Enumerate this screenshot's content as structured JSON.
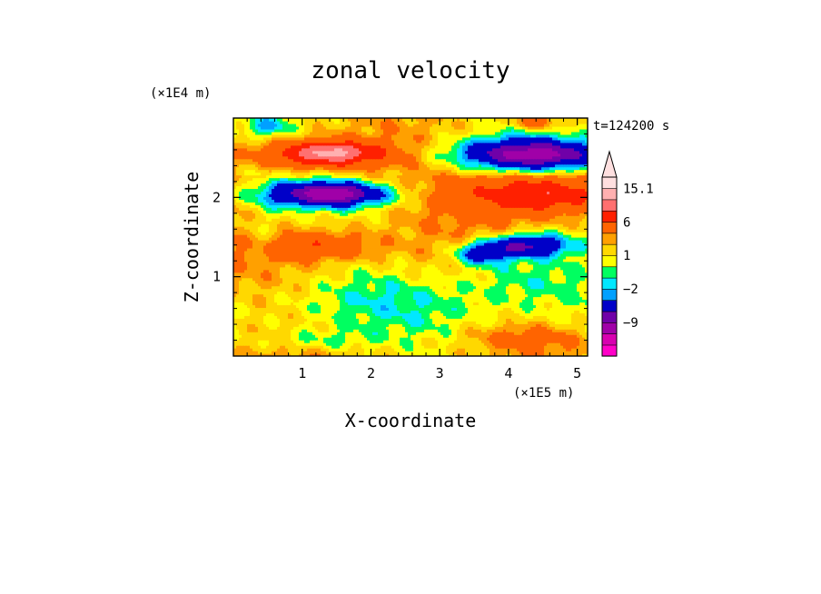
{
  "chart_data": {
    "type": "heatmap",
    "title": "zonal velocity",
    "xlabel": "X-coordinate",
    "ylabel": "Z-coordinate",
    "x_unit": "(×1E5 m)",
    "y_unit": "(×1E4 m)",
    "time_label": "t=124200 s",
    "xlim": [
      0,
      5.15
    ],
    "ylim": [
      0,
      3.0
    ],
    "x_ticks": [
      1,
      2,
      3,
      4,
      5
    ],
    "y_ticks": [
      1,
      2
    ],
    "grid": false,
    "legend_position": "right",
    "colorbar": {
      "levels": [
        -15,
        -12,
        -9,
        -6,
        -3,
        -2,
        -1,
        0,
        1,
        2,
        3,
        6,
        9,
        12,
        15.1
      ],
      "colors": [
        "#ff00c8",
        "#d800b0",
        "#a000a8",
        "#7000a8",
        "#0000c8",
        "#00a0ff",
        "#00e8ff",
        "#00ff60",
        "#ffff00",
        "#ffd800",
        "#ffa000",
        "#ff6400",
        "#ff2000",
        "#ff7070",
        "#ffb0b0",
        "#ffe0e0"
      ],
      "tick_labels": [
        {
          "value": 15.1,
          "label": "15.1"
        },
        {
          "value": 6,
          "label": "6"
        },
        {
          "value": 1,
          "label": "1"
        },
        {
          "value": -2,
          "label": "−2"
        },
        {
          "value": -9,
          "label": "−9"
        }
      ],
      "max_arrow": true
    },
    "features": [
      {
        "x": 1.3,
        "z": 2.55,
        "sx": 0.9,
        "sz": 0.18,
        "v": 9
      },
      {
        "x": 1.5,
        "z": 2.58,
        "sx": 0.4,
        "sz": 0.08,
        "v": 4
      },
      {
        "x": 1.35,
        "z": 2.05,
        "sx": 0.95,
        "sz": 0.17,
        "v": -10
      },
      {
        "x": 1.5,
        "z": 2.05,
        "sx": 0.35,
        "sz": 0.07,
        "v": -4
      },
      {
        "x": 4.3,
        "z": 2.55,
        "sx": 1.1,
        "sz": 0.2,
        "v": -10
      },
      {
        "x": 4.4,
        "z": 2.55,
        "sx": 0.4,
        "sz": 0.07,
        "v": -3
      },
      {
        "x": 4.5,
        "z": 2.05,
        "sx": 1.0,
        "sz": 0.25,
        "v": 7
      },
      {
        "x": 4.3,
        "z": 1.4,
        "sx": 0.6,
        "sz": 0.15,
        "v": -8
      },
      {
        "x": 3.6,
        "z": 1.3,
        "sx": 0.4,
        "sz": 0.15,
        "v": -6
      },
      {
        "x": 4.2,
        "z": 1.0,
        "sx": 0.9,
        "sz": 0.35,
        "v": -3
      },
      {
        "x": 1.3,
        "z": 1.4,
        "sx": 0.8,
        "sz": 0.18,
        "v": 4
      },
      {
        "x": 0.4,
        "z": 1.6,
        "sx": 0.35,
        "sz": 0.35,
        "v": -1.5
      },
      {
        "x": 2.2,
        "z": 0.8,
        "sx": 1.2,
        "sz": 0.3,
        "v": -1
      },
      {
        "x": 1.2,
        "z": 0.2,
        "sx": 0.8,
        "sz": 0.15,
        "v": -2
      },
      {
        "x": 4.2,
        "z": 0.25,
        "sx": 0.8,
        "sz": 0.15,
        "v": 2
      },
      {
        "x": 0.5,
        "z": 2.9,
        "sx": 0.3,
        "sz": 0.12,
        "v": -3
      },
      {
        "x": 4.4,
        "z": 2.95,
        "sx": 0.3,
        "sz": 0.08,
        "v": 4
      }
    ]
  }
}
